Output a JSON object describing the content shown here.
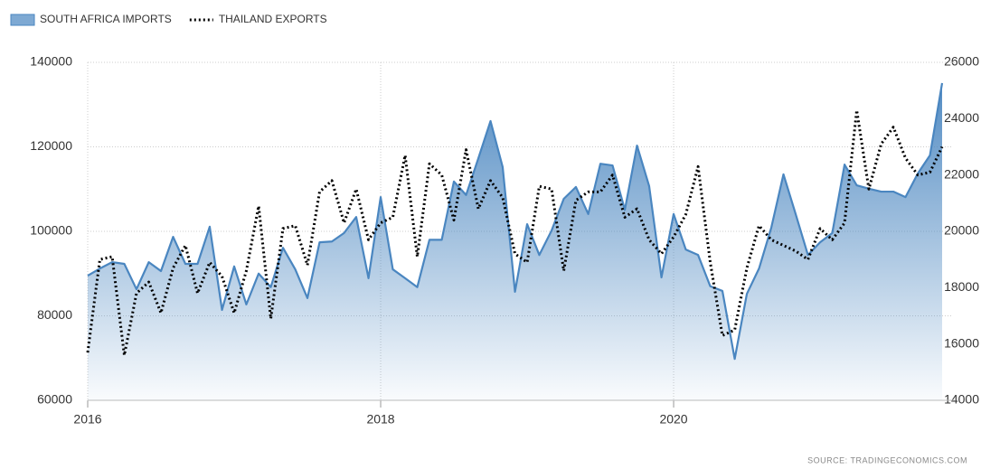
{
  "chart_data": {
    "type": "area-line",
    "x": [
      2016,
      2016.083,
      2016.167,
      2016.25,
      2016.333,
      2016.417,
      2016.5,
      2016.583,
      2016.667,
      2016.75,
      2016.833,
      2016.917,
      2017,
      2017.083,
      2017.167,
      2017.25,
      2017.333,
      2017.417,
      2017.5,
      2017.583,
      2017.667,
      2017.75,
      2017.833,
      2017.917,
      2018,
      2018.083,
      2018.167,
      2018.25,
      2018.333,
      2018.417,
      2018.5,
      2018.583,
      2018.667,
      2018.75,
      2018.833,
      2018.917,
      2019,
      2019.083,
      2019.167,
      2019.25,
      2019.333,
      2019.417,
      2019.5,
      2019.583,
      2019.667,
      2019.75,
      2019.833,
      2019.917,
      2020,
      2020.083,
      2020.167,
      2020.25,
      2020.333,
      2020.417,
      2020.5,
      2020.583,
      2020.667,
      2020.75,
      2020.833,
      2020.917,
      2021,
      2021.083,
      2021.167,
      2021.25,
      2021.333,
      2021.417,
      2021.5,
      2021.583,
      2021.667,
      2021.75,
      2021.833
    ],
    "series": [
      {
        "name": "SOUTH AFRICA IMPORTS",
        "color": "#4a86c0",
        "style": "area",
        "values": [
          89500,
          91200,
          92700,
          92300,
          86300,
          92700,
          90600,
          98700,
          92300,
          92300,
          101100,
          81400,
          91700,
          82700,
          90000,
          86800,
          96100,
          91000,
          84200,
          97400,
          97600,
          99600,
          103400,
          88900,
          108100,
          91000,
          88900,
          86800,
          98000,
          98000,
          111800,
          108600,
          117300,
          126100,
          115200,
          85700,
          101700,
          94400,
          100200,
          107700,
          110500,
          104100,
          116000,
          115600,
          105100,
          120300,
          110700,
          89100,
          104100,
          95700,
          94400,
          87000,
          85900,
          69800,
          85200,
          91200,
          100900,
          113500,
          104100,
          94400,
          97400,
          99600,
          115800,
          110900,
          110100,
          109400,
          109400,
          108100,
          113700,
          118000,
          135100
        ]
      },
      {
        "name": "THAILAND EXPORTS",
        "color": "#000000",
        "style": "dotted",
        "axis": "y2",
        "values": [
          15700,
          19000,
          19100,
          15600,
          17800,
          18200,
          17100,
          18700,
          19500,
          17800,
          18900,
          18400,
          17100,
          18600,
          20900,
          16900,
          20100,
          20200,
          18800,
          21400,
          21800,
          20300,
          21500,
          19700,
          20300,
          20500,
          22700,
          19100,
          22400,
          22000,
          20400,
          22900,
          20800,
          21800,
          21200,
          19200,
          18900,
          21600,
          21500,
          18600,
          21100,
          21400,
          21400,
          22000,
          20500,
          20800,
          19700,
          19200,
          19800,
          20600,
          22300,
          18900,
          16300,
          16500,
          18700,
          20200,
          19700,
          19500,
          19300,
          19000,
          20100,
          19700,
          20300,
          24300,
          21500,
          23100,
          23700,
          22600,
          22000,
          22100,
          23000
        ]
      }
    ],
    "xlim": [
      2016,
      2021.833
    ],
    "xticks": [
      2016,
      2018,
      2020
    ],
    "ylim": [
      60000,
      140000
    ],
    "yticks": [
      60000,
      80000,
      100000,
      120000,
      140000
    ],
    "y2lim": [
      14000,
      26000
    ],
    "y2ticks": [
      14000,
      16000,
      18000,
      20000,
      22000,
      24000,
      26000
    ],
    "grid": true,
    "source": "SOURCE:  TRADINGECONOMICS.COM"
  }
}
